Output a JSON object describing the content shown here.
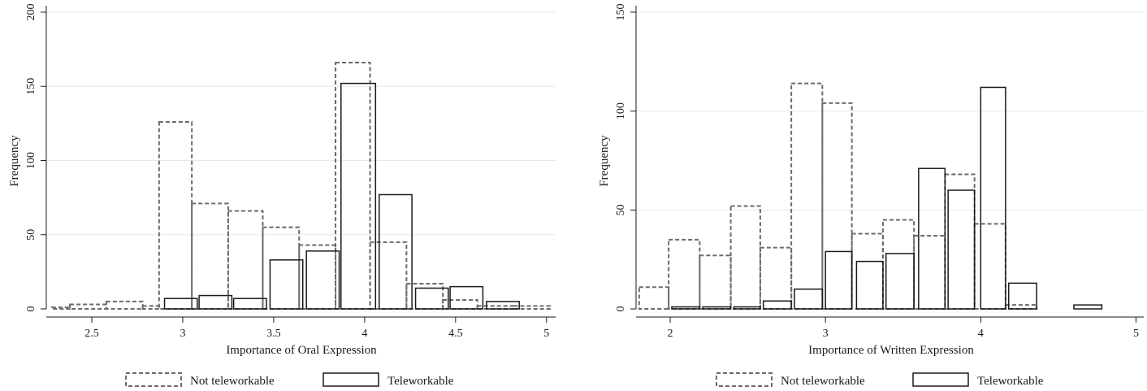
{
  "chart_data": [
    {
      "type": "bar",
      "xlabel": "Importance of Oral Expression",
      "ylabel": "Frequency",
      "xlim": [
        2.25,
        5.05
      ],
      "ylim": [
        0,
        200
      ],
      "xticks": [
        "2.5",
        "3",
        "3.5",
        "4",
        "4.5",
        "5"
      ],
      "yticks": [
        "0",
        "50",
        "100",
        "150",
        "200"
      ],
      "grid": true,
      "legend_position": "bottom",
      "series": [
        {
          "name": "Not teleworkable",
          "style": "dashed",
          "bars": [
            {
              "x0": 2.28,
              "x1": 2.38,
              "y": 1
            },
            {
              "x0": 2.38,
              "x1": 2.58,
              "y": 3
            },
            {
              "x0": 2.58,
              "x1": 2.78,
              "y": 5
            },
            {
              "x0": 2.78,
              "x1": 2.87,
              "y": 2
            },
            {
              "x0": 2.87,
              "x1": 3.05,
              "y": 126
            },
            {
              "x0": 3.05,
              "x1": 3.25,
              "y": 71
            },
            {
              "x0": 3.25,
              "x1": 3.44,
              "y": 66
            },
            {
              "x0": 3.44,
              "x1": 3.64,
              "y": 55
            },
            {
              "x0": 3.64,
              "x1": 3.84,
              "y": 43
            },
            {
              "x0": 3.84,
              "x1": 4.03,
              "y": 166
            },
            {
              "x0": 4.03,
              "x1": 4.23,
              "y": 45
            },
            {
              "x0": 4.23,
              "x1": 4.43,
              "y": 17
            },
            {
              "x0": 4.43,
              "x1": 4.62,
              "y": 6
            },
            {
              "x0": 4.62,
              "x1": 4.82,
              "y": 2
            },
            {
              "x0": 4.82,
              "x1": 5.02,
              "y": 2
            }
          ]
        },
        {
          "name": "Teleworkable",
          "style": "solid",
          "bars": [
            {
              "x0": 2.9,
              "x1": 3.08,
              "y": 7
            },
            {
              "x0": 3.09,
              "x1": 3.27,
              "y": 9
            },
            {
              "x0": 3.28,
              "x1": 3.46,
              "y": 7
            },
            {
              "x0": 3.48,
              "x1": 3.66,
              "y": 33
            },
            {
              "x0": 3.68,
              "x1": 3.86,
              "y": 39
            },
            {
              "x0": 3.87,
              "x1": 4.06,
              "y": 152
            },
            {
              "x0": 4.08,
              "x1": 4.26,
              "y": 77
            },
            {
              "x0": 4.28,
              "x1": 4.46,
              "y": 14
            },
            {
              "x0": 4.47,
              "x1": 4.65,
              "y": 15
            },
            {
              "x0": 4.67,
              "x1": 4.85,
              "y": 5
            }
          ]
        }
      ]
    },
    {
      "type": "bar",
      "xlabel": "Importance of Written Expression",
      "ylabel": "Frequency",
      "xlim": [
        1.78,
        5.05
      ],
      "ylim": [
        0,
        150
      ],
      "xticks": [
        "2",
        "3",
        "4",
        "5"
      ],
      "yticks": [
        "0",
        "50",
        "100",
        "150"
      ],
      "grid": true,
      "legend_position": "bottom",
      "series": [
        {
          "name": "Not teleworkable",
          "style": "dashed",
          "bars": [
            {
              "x0": 1.8,
              "x1": 1.99,
              "y": 11
            },
            {
              "x0": 1.99,
              "x1": 2.19,
              "y": 35
            },
            {
              "x0": 2.19,
              "x1": 2.39,
              "y": 27
            },
            {
              "x0": 2.39,
              "x1": 2.58,
              "y": 52
            },
            {
              "x0": 2.58,
              "x1": 2.78,
              "y": 31
            },
            {
              "x0": 2.78,
              "x1": 2.98,
              "y": 114
            },
            {
              "x0": 2.98,
              "x1": 3.17,
              "y": 104
            },
            {
              "x0": 3.17,
              "x1": 3.37,
              "y": 38
            },
            {
              "x0": 3.37,
              "x1": 3.57,
              "y": 45
            },
            {
              "x0": 3.57,
              "x1": 3.77,
              "y": 37
            },
            {
              "x0": 3.77,
              "x1": 3.96,
              "y": 68
            },
            {
              "x0": 3.96,
              "x1": 4.16,
              "y": 43
            },
            {
              "x0": 4.16,
              "x1": 4.36,
              "y": 2
            }
          ]
        },
        {
          "name": "Teleworkable",
          "style": "solid",
          "bars": [
            {
              "x0": 2.01,
              "x1": 2.19,
              "y": 1
            },
            {
              "x0": 2.21,
              "x1": 2.39,
              "y": 1
            },
            {
              "x0": 2.41,
              "x1": 2.58,
              "y": 1
            },
            {
              "x0": 2.6,
              "x1": 2.78,
              "y": 4
            },
            {
              "x0": 2.8,
              "x1": 2.98,
              "y": 10
            },
            {
              "x0": 3.0,
              "x1": 3.17,
              "y": 29
            },
            {
              "x0": 3.2,
              "x1": 3.37,
              "y": 24
            },
            {
              "x0": 3.39,
              "x1": 3.57,
              "y": 28
            },
            {
              "x0": 3.6,
              "x1": 3.77,
              "y": 71
            },
            {
              "x0": 3.79,
              "x1": 3.96,
              "y": 60
            },
            {
              "x0": 4.0,
              "x1": 4.16,
              "y": 112
            },
            {
              "x0": 4.18,
              "x1": 4.36,
              "y": 13
            },
            {
              "x0": 4.6,
              "x1": 4.78,
              "y": 2
            }
          ]
        }
      ]
    }
  ]
}
